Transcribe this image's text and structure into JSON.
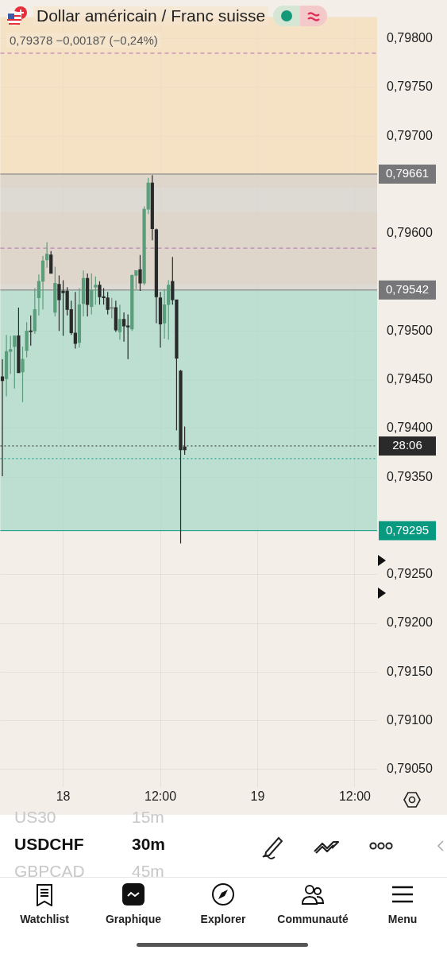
{
  "chart_data": {
    "type": "candlestick",
    "title": "Dollar américain / Franc suisse",
    "subtitle": "0,79378 −0,00187 (−0,24%)",
    "categories": [
      null,
      null,
      null,
      null,
      null,
      null,
      null,
      null,
      null,
      null,
      null,
      null,
      null,
      null,
      null,
      "18",
      null,
      null,
      null,
      null,
      null,
      null,
      null,
      null,
      null,
      null,
      null,
      null,
      null,
      null,
      null,
      null,
      null,
      null,
      null,
      null,
      null,
      null,
      null,
      "12:00",
      null,
      null,
      null,
      null,
      null,
      null,
      null,
      null,
      null,
      null,
      null,
      null,
      null,
      null,
      null,
      null,
      null,
      null,
      null,
      null,
      null,
      null,
      null,
      "19",
      null,
      null,
      null,
      null,
      null,
      null,
      null,
      null,
      null,
      null,
      null,
      null,
      null,
      null,
      null,
      null,
      null,
      null,
      null,
      null,
      null,
      null,
      null,
      "12:00",
      null,
      null,
      null,
      null,
      null
    ],
    "ohlc": [
      [
        0.79453,
        0.79471,
        0.79351,
        0.79449
      ],
      [
        0.79451,
        0.79496,
        0.79433,
        0.79479
      ],
      [
        0.79479,
        0.79495,
        0.79456,
        0.79481
      ],
      [
        0.79484,
        0.79495,
        0.79441,
        0.79495
      ],
      [
        0.79495,
        0.79524,
        0.79457,
        0.79457
      ],
      [
        0.79458,
        0.79484,
        0.79427,
        0.79471
      ],
      [
        0.7948,
        0.79509,
        0.79473,
        0.795
      ],
      [
        0.795,
        0.79516,
        0.79485,
        0.79499
      ],
      [
        0.795,
        0.79544,
        0.79497,
        0.79522
      ],
      [
        0.79534,
        0.79558,
        0.79516,
        0.79551
      ],
      [
        0.79551,
        0.79577,
        0.79522,
        0.79572
      ],
      [
        0.79573,
        0.79591,
        0.79565,
        0.79579
      ],
      [
        0.79578,
        0.79582,
        0.79559,
        0.79559
      ],
      [
        0.79519,
        0.79566,
        0.79515,
        0.79549
      ],
      [
        0.79548,
        0.79557,
        0.795,
        0.79532
      ],
      [
        0.79541,
        0.79552,
        0.79495,
        0.79539
      ],
      [
        0.79541,
        0.79545,
        0.79516,
        0.79522
      ],
      [
        0.79522,
        0.79531,
        0.79496,
        0.79498
      ],
      [
        0.79498,
        0.7954,
        0.79482,
        0.79487
      ],
      [
        0.79488,
        0.79544,
        0.79483,
        0.79527
      ],
      [
        0.79528,
        0.79562,
        0.79515,
        0.79554
      ],
      [
        0.79554,
        0.79559,
        0.79515,
        0.79527
      ],
      [
        0.79525,
        0.79559,
        0.79517,
        0.79542
      ],
      [
        0.79545,
        0.79556,
        0.79527,
        0.79547
      ],
      [
        0.79547,
        0.79551,
        0.79527,
        0.79535
      ],
      [
        0.79535,
        0.79544,
        0.79527,
        0.79534
      ],
      [
        0.79534,
        0.7954,
        0.79517,
        0.79522
      ],
      [
        0.79523,
        0.79534,
        0.79513,
        0.79523
      ],
      [
        0.79524,
        0.79531,
        0.79499,
        0.79501
      ],
      [
        0.79499,
        0.79527,
        0.79491,
        0.79512
      ],
      [
        0.79512,
        0.79519,
        0.79489,
        0.79505
      ],
      [
        0.79505,
        0.79517,
        0.79471,
        0.79504
      ],
      [
        0.79502,
        0.79558,
        0.795,
        0.79557
      ],
      [
        0.79557,
        0.79562,
        0.79543,
        0.79562
      ],
      [
        0.79563,
        0.79578,
        0.79541,
        0.79549
      ],
      [
        0.79549,
        0.79628,
        0.79547,
        0.79625
      ],
      [
        0.79625,
        0.79657,
        0.7962,
        0.79652
      ],
      [
        0.79652,
        0.7966,
        0.79593,
        0.79605
      ],
      [
        0.79604,
        0.79605,
        0.79508,
        0.79535
      ],
      [
        0.79534,
        0.7954,
        0.79483,
        0.79507
      ],
      [
        0.79508,
        0.79543,
        0.79492,
        0.79527
      ],
      [
        0.79527,
        0.79552,
        0.79491,
        0.79547
      ],
      [
        0.79551,
        0.79576,
        0.79527,
        0.79532
      ],
      [
        0.79532,
        0.79532,
        0.79398,
        0.79472
      ],
      [
        0.79459,
        0.7946,
        0.79282,
        0.79378
      ],
      [
        0.79381,
        0.79402,
        0.79373,
        0.79378
      ],
      null,
      null,
      null,
      null,
      null,
      null,
      null,
      null,
      null,
      null,
      null,
      null,
      null,
      null,
      null,
      null,
      null,
      null,
      null,
      null,
      null,
      null,
      null,
      null,
      null,
      null,
      null,
      null,
      null,
      null,
      null,
      null,
      null,
      null,
      null,
      null,
      null,
      null,
      null,
      null,
      null,
      null,
      null,
      null,
      null,
      null,
      null
    ],
    "colors": [
      "#2a2a2a",
      "#5a9e7c",
      "#5a9e7c",
      "#5a9e7c",
      "#2a2a2a",
      "#5a9e7c",
      "#5a9e7c",
      "#2a2a2a",
      "#5a9e7c",
      "#5a9e7c",
      "#5a9e7c",
      "#5a9e7c",
      "#2a2a2a",
      "#5a9e7c",
      "#2a2a2a",
      "#2a2a2a",
      "#2a2a2a",
      "#2a2a2a",
      "#2a2a2a",
      "#5a9e7c",
      "#5a9e7c",
      "#2a2a2a",
      "#5a9e7c",
      "#5a9e7c",
      "#2a2a2a",
      "#2a2a2a",
      "#2a2a2a",
      "#7d8a84",
      "#2a2a2a",
      "#5a9e7c",
      "#2a2a2a",
      "#2a2a2a",
      "#5a9e7c",
      "#5a9e7c",
      "#2a2a2a",
      "#5a9e7c",
      "#5a9e7c",
      "#2a2a2a",
      "#2a2a2a",
      "#2a2a2a",
      "#5a9e7c",
      "#5a9e7c",
      "#2a2a2a",
      "#2a2a2a",
      "#2a2a2a",
      "#2a2a2a",
      null,
      null,
      null,
      null,
      null,
      null,
      null,
      null,
      null,
      null,
      null,
      null,
      null,
      null,
      null,
      null,
      null,
      null,
      null,
      null,
      null,
      null,
      null,
      null,
      null,
      null,
      null,
      null,
      null,
      null,
      null,
      null,
      null,
      null,
      null,
      null,
      null,
      null,
      null,
      null,
      null,
      null,
      null,
      null,
      null,
      null,
      null
    ],
    "ylim": [
      0.79032,
      0.79822
    ],
    "yticks": [
      {
        "value": 0.7905,
        "label": "0,79050"
      },
      {
        "value": 0.791,
        "label": "0,79100"
      },
      {
        "value": 0.7915,
        "label": "0,79150"
      },
      {
        "value": 0.792,
        "label": "0,79200"
      },
      {
        "value": 0.7925,
        "label": "0,79250"
      },
      {
        "value": 0.7935,
        "label": "0,79350"
      },
      {
        "value": 0.794,
        "label": "0,79400"
      },
      {
        "value": 0.7945,
        "label": "0,79450"
      },
      {
        "value": 0.795,
        "label": "0,79500"
      },
      {
        "value": 0.796,
        "label": "0,79600"
      },
      {
        "value": 0.797,
        "label": "0,79700"
      },
      {
        "value": 0.7975,
        "label": "0,79750"
      },
      {
        "value": 0.798,
        "label": "0,79800"
      }
    ],
    "grid": true,
    "bands": [
      {
        "axis": "y",
        "from": 0.79647,
        "to": 0.79822,
        "color": "#f5deb9"
      },
      {
        "axis": "y",
        "from": 0.79548,
        "to": 0.79622,
        "color": "#f5deb9"
      },
      {
        "axis": "y",
        "from": 0.79542,
        "to": 0.79661,
        "color": "#d6d2cc"
      },
      {
        "axis": "y",
        "from": 0.79295,
        "to": 0.79542,
        "color": "#a9d9c9"
      }
    ],
    "ref_lines": [
      {
        "axis": "y",
        "value": 0.79785,
        "color": "#b36fb3",
        "line_style": "dashed"
      },
      {
        "axis": "y",
        "value": 0.79585,
        "color": "#b36fb3",
        "line_style": "dashed"
      },
      {
        "axis": "y",
        "value": 0.79661,
        "label": "0,79661",
        "color": "#77777a",
        "line_style": "solid"
      },
      {
        "axis": "y",
        "value": 0.79542,
        "label": "0,79542",
        "color": "#77777a",
        "line_style": "solid"
      },
      {
        "axis": "y",
        "value": 0.79295,
        "label": "0,79295",
        "color": "#089981",
        "line_style": "solid"
      },
      {
        "axis": "y",
        "value": 0.79382,
        "color": "#2a2a2a",
        "line_style": "dotted"
      },
      {
        "axis": "y",
        "value": 0.79369,
        "color": "#089981",
        "line_style": "dotted"
      }
    ],
    "annotations": [
      "US30",
      "15m",
      "USDCHF",
      "30m",
      "GBPCAD",
      "45m",
      "Watchlist",
      "Graphique",
      "Explorer",
      "Communauté",
      "Menu",
      "28:06"
    ]
  }
}
